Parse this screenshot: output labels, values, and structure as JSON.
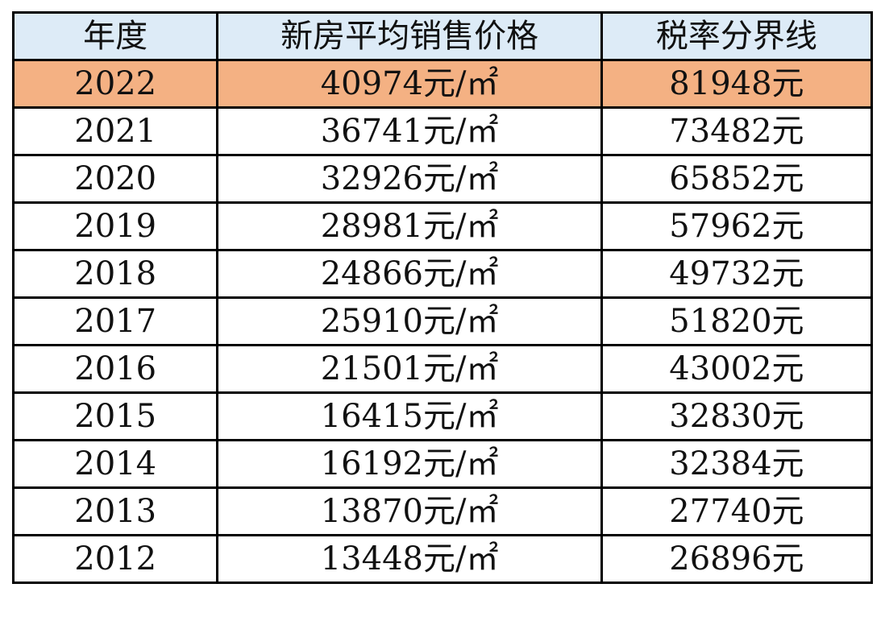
{
  "table": {
    "headers": [
      "年度",
      "新房平均销售价格",
      "税率分界线"
    ],
    "highlight_color": "#f4b183",
    "header_color": "#ddebf7",
    "rows": [
      [
        "2022",
        "40974元/㎡",
        "81948元"
      ],
      [
        "2021",
        "36741元/㎡",
        "73482元"
      ],
      [
        "2020",
        "32926元/㎡",
        "65852元"
      ],
      [
        "2019",
        "28981元/㎡",
        "57962元"
      ],
      [
        "2018",
        "24866元/㎡",
        "49732元"
      ],
      [
        "2017",
        "25910元/㎡",
        "51820元"
      ],
      [
        "2016",
        "21501元/㎡",
        "43002元"
      ],
      [
        "2015",
        "16415元/㎡",
        "32830元"
      ],
      [
        "2014",
        "16192元/㎡",
        "32384元"
      ],
      [
        "2013",
        "13870元/㎡",
        "27740元"
      ],
      [
        "2012",
        "13448元/㎡",
        "26896元"
      ]
    ]
  }
}
